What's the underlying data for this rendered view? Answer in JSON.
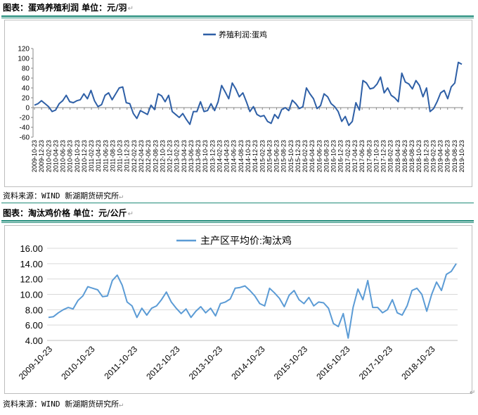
{
  "figures": [
    {
      "label": "图表：蛋鸡养殖利润 单位：元/羽",
      "source": "资料来源：WIND 新湖期货研究所",
      "chart_data": {
        "type": "line",
        "title": "",
        "xlabel": "",
        "ylabel": "",
        "ylim": [
          -60,
          120
        ],
        "yticks": [
          -60,
          -40,
          -20,
          0,
          20,
          40,
          60,
          80,
          100,
          120
        ],
        "grid": false,
        "legend": "top",
        "x_tick_labels": [
          "2009-10-23",
          "2009-12-23",
          "2010-02-23",
          "2010-04-23",
          "2010-06-23",
          "2010-08-23",
          "2010-10-23",
          "2010-12-23",
          "2011-02-23",
          "2011-04-23",
          "2011-06-23",
          "2011-08-23",
          "2011-10-23",
          "2011-12-23",
          "2012-02-23",
          "2012-04-23",
          "2012-06-23",
          "2012-08-23",
          "2012-10-23",
          "2012-12-23",
          "2013-02-23",
          "2013-04-23",
          "2013-06-23",
          "2013-08-23",
          "2013-10-23",
          "2013-12-23",
          "2014-02-23",
          "2014-04-23",
          "2014-06-23",
          "2014-08-23",
          "2014-10-23",
          "2014-12-23",
          "2015-02-23",
          "2015-04-23",
          "2015-06-23",
          "2015-08-23",
          "2015-10-23",
          "2015-12-23",
          "2016-02-23",
          "2016-04-23",
          "2016-06-23",
          "2016-08-23",
          "2016-10-23",
          "2016-12-23",
          "2017-02-23",
          "2017-04-23",
          "2017-06-23",
          "2017-08-23",
          "2017-10-23",
          "2017-12-23",
          "2018-02-23",
          "2018-04-23",
          "2018-06-23",
          "2018-08-23",
          "2018-10-23",
          "2018-12-23",
          "2019-02-23",
          "2019-04-23",
          "2019-06-23",
          "2019-08-23",
          "2019-10-23"
        ],
        "series": [
          {
            "name": "养殖利润:蛋鸡",
            "color": "#2e5fa6",
            "values": [
              5,
              8,
              14,
              8,
              2,
              -8,
              -5,
              8,
              14,
              25,
              12,
              10,
              14,
              16,
              28,
              18,
              35,
              14,
              2,
              6,
              25,
              30,
              16,
              28,
              40,
              42,
              10,
              8,
              -12,
              -22,
              -6,
              -10,
              -14,
              5,
              -4,
              28,
              24,
              12,
              25,
              -8,
              -14,
              -20,
              -12,
              -24,
              -34,
              -8,
              -8,
              12,
              -8,
              -6,
              8,
              -6,
              12,
              45,
              32,
              18,
              50,
              38,
              22,
              30,
              12,
              -8,
              2,
              -14,
              -18,
              -16,
              -28,
              -32,
              -14,
              -22,
              -4,
              0,
              -6,
              15,
              8,
              -2,
              2,
              40,
              28,
              18,
              -2,
              4,
              28,
              22,
              8,
              2,
              -8,
              -28,
              -18,
              -36,
              -28,
              10,
              -5,
              55,
              50,
              38,
              40,
              48,
              62,
              30,
              40,
              25,
              20,
              12,
              70,
              52,
              48,
              38,
              55,
              45,
              22,
              40,
              -8,
              -2,
              12,
              30,
              35,
              18,
              42,
              50,
              92,
              88
            ]
          }
        ]
      }
    },
    {
      "label": "图表：淘汰鸡价格 单位：元/公斤",
      "source": "资料来源：WIND 新湖期货研究所",
      "chart_data": {
        "type": "line",
        "title": "",
        "xlabel": "",
        "ylabel": "",
        "ylim": [
          4,
          16
        ],
        "yticks": [
          "4.00",
          "6.00",
          "8.00",
          "10.00",
          "12.00",
          "14.00",
          "16.00"
        ],
        "grid": true,
        "legend": "top",
        "x_tick_labels": [
          "2009-10-23",
          "2010-10-23",
          "2011-10-23",
          "2012-10-23",
          "2013-10-23",
          "2014-10-23",
          "2015-10-23",
          "2016-10-23",
          "2017-10-23",
          "2018-10-23"
        ],
        "series": [
          {
            "name": "主产区平均价:淘汰鸡",
            "color": "#5b9bd5",
            "values": [
              7.0,
              7.1,
              7.6,
              8.0,
              8.3,
              8.1,
              9.2,
              9.8,
              11.0,
              10.8,
              10.6,
              9.7,
              9.8,
              11.8,
              12.5,
              11.2,
              9.0,
              8.5,
              7.0,
              8.2,
              7.3,
              8.2,
              8.5,
              9.3,
              10.3,
              9.0,
              8.2,
              7.5,
              8.1,
              7.0,
              7.8,
              8.4,
              7.6,
              8.2,
              7.2,
              8.8,
              9.0,
              9.4,
              10.8,
              10.9,
              11.1,
              10.5,
              9.8,
              8.8,
              8.5,
              10.8,
              10.2,
              9.5,
              8.4,
              9.9,
              10.5,
              9.3,
              8.8,
              9.6,
              8.5,
              9.0,
              8.9,
              8.2,
              6.2,
              5.8,
              7.5,
              4.3,
              8.3,
              10.7,
              9.3,
              11.8,
              8.3,
              8.3,
              7.6,
              8.0,
              9.3,
              7.6,
              7.3,
              8.5,
              10.5,
              10.8,
              10.0,
              7.8,
              10.0,
              11.6,
              10.5,
              12.6,
              13.0,
              14.0
            ]
          }
        ]
      }
    }
  ]
}
